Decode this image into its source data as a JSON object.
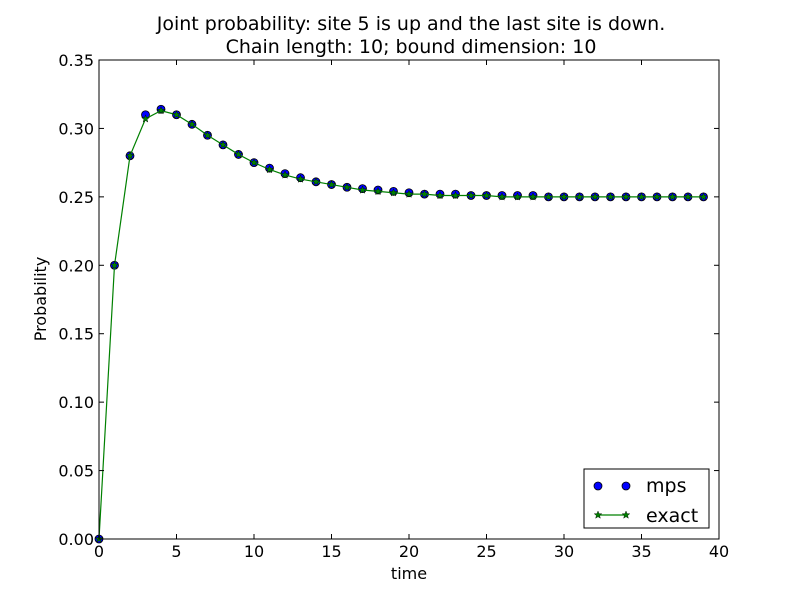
{
  "chart_data": {
    "type": "line",
    "title_lines": [
      "Joint probability: site 5 is up and the last site is down.",
      "Chain length: 10; bound dimension: 10"
    ],
    "xlabel": "time",
    "ylabel": "Probability",
    "xlim": [
      0,
      40
    ],
    "ylim": [
      0,
      0.35
    ],
    "x_ticks": [
      0,
      5,
      10,
      15,
      20,
      25,
      30,
      35,
      40
    ],
    "y_ticks": [
      0.0,
      0.05,
      0.1,
      0.15,
      0.2,
      0.25,
      0.3,
      0.35
    ],
    "x_tick_labels": [
      "0",
      "5",
      "10",
      "15",
      "20",
      "25",
      "30",
      "35",
      "40"
    ],
    "y_tick_labels": [
      "0.00",
      "0.05",
      "0.10",
      "0.15",
      "0.20",
      "0.25",
      "0.30",
      "0.35"
    ],
    "grid": false,
    "legend_position": "lower-right",
    "x": [
      0,
      1,
      2,
      3,
      4,
      5,
      6,
      7,
      8,
      9,
      10,
      11,
      12,
      13,
      14,
      15,
      16,
      17,
      18,
      19,
      20,
      21,
      22,
      23,
      24,
      25,
      26,
      27,
      28,
      29,
      30,
      31,
      32,
      33,
      34,
      35,
      36,
      37,
      38,
      39
    ],
    "series": [
      {
        "name": "mps",
        "style": "markers",
        "marker": "circle",
        "color": "#0000ff",
        "edge_color": "#000000",
        "values": [
          0.0,
          0.2,
          0.28,
          0.31,
          0.314,
          0.31,
          0.303,
          0.295,
          0.288,
          0.281,
          0.275,
          0.271,
          0.267,
          0.264,
          0.261,
          0.259,
          0.257,
          0.256,
          0.255,
          0.254,
          0.253,
          0.252,
          0.252,
          0.252,
          0.251,
          0.251,
          0.251,
          0.251,
          0.251,
          0.25,
          0.25,
          0.25,
          0.25,
          0.25,
          0.25,
          0.25,
          0.25,
          0.25,
          0.25,
          0.25
        ]
      },
      {
        "name": "exact",
        "style": "line-with-markers",
        "marker": "star",
        "color": "#008000",
        "values": [
          0.0,
          0.2,
          0.28,
          0.307,
          0.313,
          0.31,
          0.303,
          0.295,
          0.288,
          0.281,
          0.275,
          0.27,
          0.266,
          0.263,
          0.261,
          0.259,
          0.257,
          0.255,
          0.254,
          0.253,
          0.252,
          0.252,
          0.251,
          0.251,
          0.251,
          0.251,
          0.25,
          0.25,
          0.25,
          0.25,
          0.25,
          0.25,
          0.25,
          0.25,
          0.25,
          0.25,
          0.25,
          0.25,
          0.25,
          0.25
        ]
      }
    ]
  }
}
